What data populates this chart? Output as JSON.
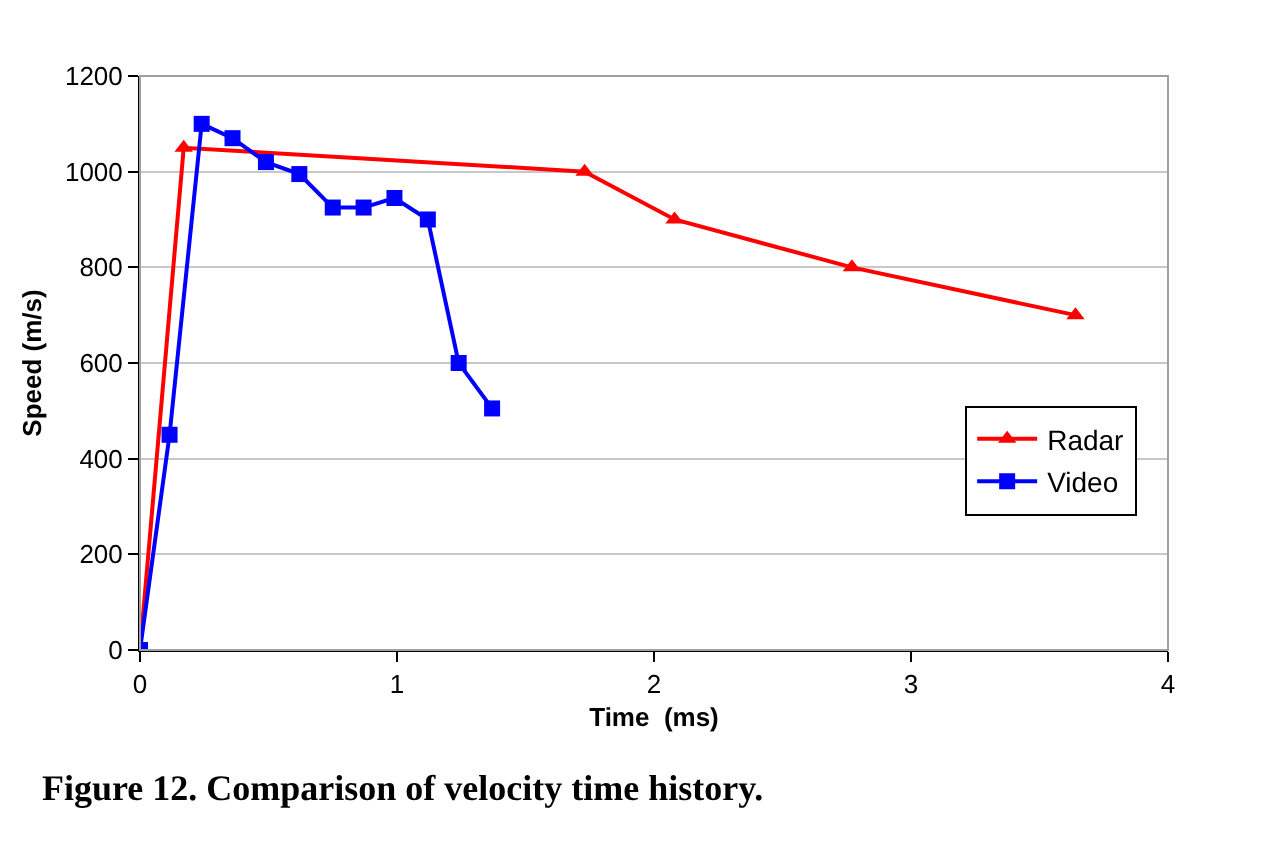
{
  "chart_data": {
    "type": "line",
    "xlabel": "Time  (ms)",
    "ylabel": "Speed (m/s)",
    "annotations": [
      "Figure 12. Comparison of velocity time history."
    ],
    "xlim": [
      0,
      4
    ],
    "xticks": [
      0,
      1,
      2,
      3,
      4
    ],
    "ylim": [
      0,
      1200
    ],
    "yticks": [
      0,
      200,
      400,
      600,
      800,
      1000,
      1200
    ],
    "grid": "y",
    "legend": "right",
    "series": [
      {
        "name": "Radar",
        "color": "#ff0000",
        "marker": "triangle",
        "x": [
          0,
          0.17,
          1.73,
          2.08,
          2.77,
          3.64
        ],
        "values": [
          0,
          1050,
          1000,
          900,
          800,
          700
        ]
      },
      {
        "name": "Video",
        "color": "#0000ff",
        "marker": "square",
        "x": [
          0,
          0.115,
          0.24,
          0.36,
          0.49,
          0.62,
          0.75,
          0.87,
          0.99,
          1.12,
          1.24,
          1.37
        ],
        "values": [
          0,
          450,
          1100,
          1070,
          1020,
          995,
          925,
          925,
          945,
          900,
          600,
          505
        ]
      }
    ]
  }
}
